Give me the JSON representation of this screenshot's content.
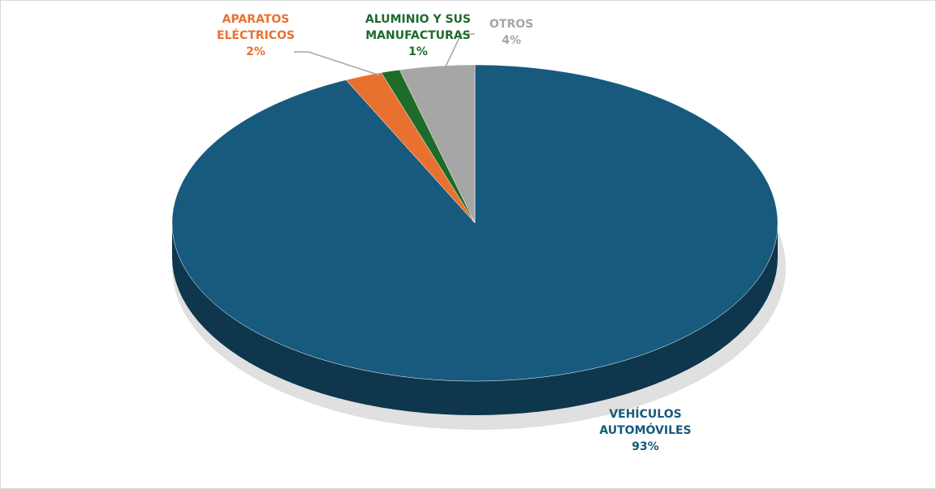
{
  "chart_data": {
    "type": "pie",
    "categories": [
      "VEHÍCULOS AUTOMÓVILES",
      "APARATOS ELÉCTRICOS",
      "ALUMINIO Y SUS MANUFACTURAS",
      "OTROS"
    ],
    "values": [
      93,
      2,
      1,
      4
    ],
    "value_labels": [
      "93%",
      "2%",
      "1%",
      "4%"
    ],
    "colors": [
      "#175a7e",
      "#e8712f",
      "#1e6b2a",
      "#a6a6a6"
    ]
  }
}
